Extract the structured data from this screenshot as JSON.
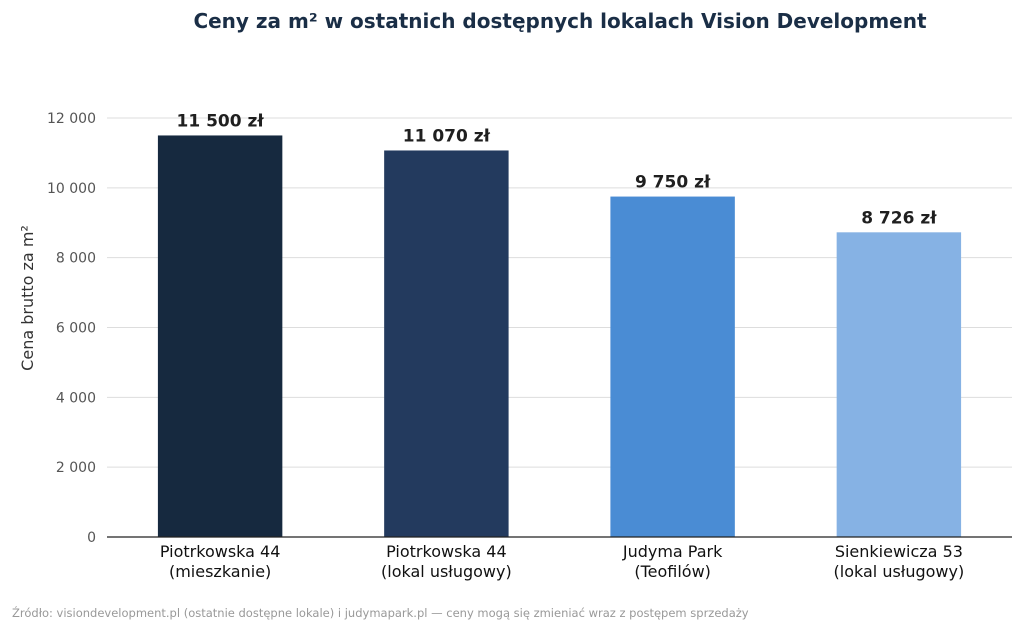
{
  "chart_data": {
    "type": "bar",
    "title": "Ceny za m² w ostatnich dostępnych lokalach Vision Development",
    "ylabel": "Cena brutto za m²",
    "xlabel": "",
    "ylim": [
      0,
      12000
    ],
    "yticks": [
      0,
      2000,
      4000,
      6000,
      8000,
      10000,
      12000
    ],
    "ytick_labels": [
      "0",
      "2 000",
      "4 000",
      "6 000",
      "8 000",
      "10 000",
      "12 000"
    ],
    "grid": true,
    "categories": [
      [
        "Piotrkowska 44",
        "(mieszkanie)"
      ],
      [
        "Piotrkowska 44",
        "(lokal usługowy)"
      ],
      [
        "Judyma Park",
        "(Teofilów)"
      ],
      [
        "Sienkiewicza 53",
        "(lokal usługowy)"
      ]
    ],
    "values": [
      11500,
      11070,
      9750,
      8726
    ],
    "data_labels": [
      "11 500 zł",
      "11 070 zł",
      "9 750 zł",
      "8 726 zł"
    ],
    "colors": [
      "#16293f",
      "#233a5e",
      "#4a8cd4",
      "#86b2e4"
    ]
  },
  "source_note": "Źródło: visiondevelopment.pl (ostatnie dostępne lokale) i judymapark.pl — ceny mogą się zmieniać wraz z postępem sprzedaży"
}
